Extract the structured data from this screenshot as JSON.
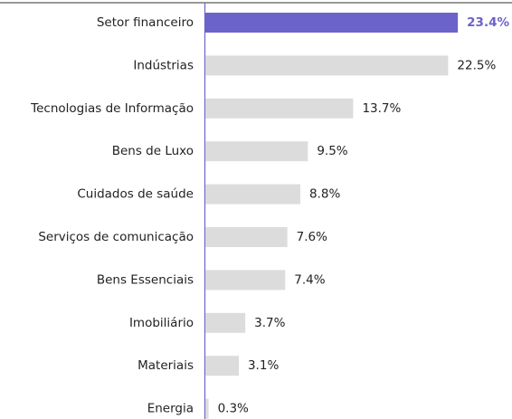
{
  "chart_data": {
    "type": "bar",
    "orientation": "horizontal",
    "categories": [
      "Setor financeiro",
      "Indústrias",
      "Tecnologias de Informação",
      "Bens de Luxo",
      "Cuidados de saúde",
      "Serviços de comunicação",
      "Bens Essenciais",
      "Imobiliário",
      "Materiais",
      "Energia"
    ],
    "values": [
      23.4,
      22.5,
      13.7,
      9.5,
      8.8,
      7.6,
      7.4,
      3.7,
      3.1,
      0.3
    ],
    "value_labels": [
      "23.4%",
      "22.5%",
      "13.7%",
      "9.5%",
      "8.8%",
      "7.6%",
      "7.4%",
      "3.7%",
      "3.1%",
      "0.3%"
    ],
    "colors": [
      "#6b63c9",
      "#dcdcdc",
      "#dcdcdc",
      "#dcdcdc",
      "#dcdcdc",
      "#dcdcdc",
      "#dcdcdc",
      "#dcdcdc",
      "#dcdcdc",
      "#dcdcdc"
    ]
  }
}
